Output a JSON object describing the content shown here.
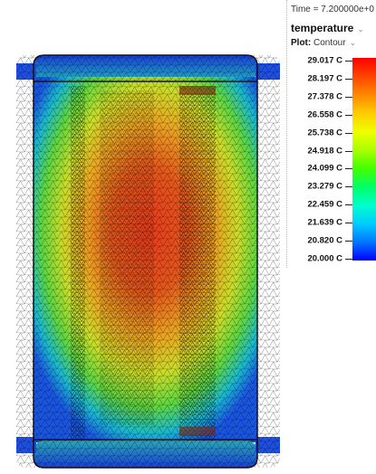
{
  "panel": {
    "time_readout": "Time = 7.200000e+0",
    "variable": "temperature",
    "plot_label": "Plot:",
    "plot_type": "Contour"
  },
  "legend": {
    "ticks": [
      "29.017 C",
      "28.197 C",
      "27.378 C",
      "26.558 C",
      "25.738 C",
      "24.918 C",
      "24.099 C",
      "23.279 C",
      "22.459 C",
      "21.639 C",
      "20.820 C",
      "20.000 C"
    ],
    "colors": [
      "#ff0000",
      "#ff4400",
      "#ff8800",
      "#ffcc00",
      "#eeff00",
      "#aaff00",
      "#44ff00",
      "#00ff66",
      "#00ffcc",
      "#00ccff",
      "#0077ff",
      "#0000ff"
    ]
  },
  "icons": {
    "dropdown": "chevron-down-icon"
  }
}
